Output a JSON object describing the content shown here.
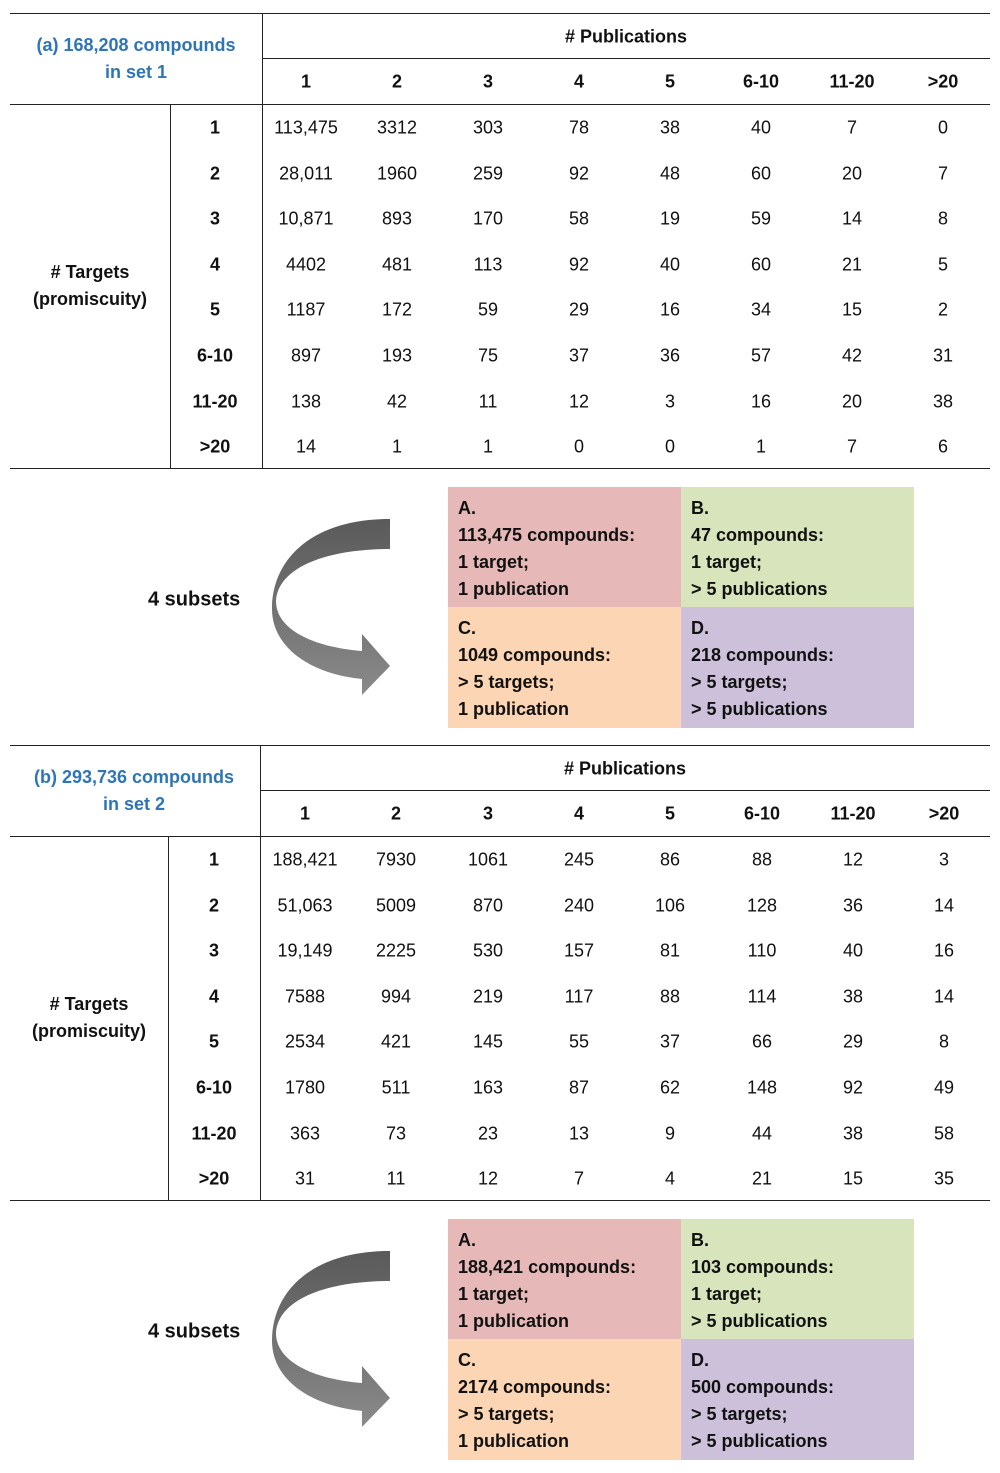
{
  "colors": {
    "title": "#2e75b6",
    "A": "#e6b9b8",
    "B": "#d7e4bc",
    "C": "#fcd5b4",
    "D": "#ccc0da"
  },
  "sections": [
    {
      "title_line1": "(a) 168,208 compounds",
      "title_line2": "in set 1",
      "pub_header": "# Publications",
      "targets_line1": "# Targets",
      "targets_line2": "(promiscuity)",
      "columns": [
        "1",
        "2",
        "3",
        "4",
        "5",
        "6-10",
        "11-20",
        ">20"
      ],
      "rows": [
        {
          "label": "1",
          "values": [
            "113,475",
            "3312",
            "303",
            "78",
            "38",
            "40",
            "7",
            "0"
          ]
        },
        {
          "label": "2",
          "values": [
            "28,011",
            "1960",
            "259",
            "92",
            "48",
            "60",
            "20",
            "7"
          ]
        },
        {
          "label": "3",
          "values": [
            "10,871",
            "893",
            "170",
            "58",
            "19",
            "59",
            "14",
            "8"
          ]
        },
        {
          "label": "4",
          "values": [
            "4402",
            "481",
            "113",
            "92",
            "40",
            "60",
            "21",
            "5"
          ]
        },
        {
          "label": "5",
          "values": [
            "1187",
            "172",
            "59",
            "29",
            "16",
            "34",
            "15",
            "2"
          ]
        },
        {
          "label": "6-10",
          "values": [
            "897",
            "193",
            "75",
            "37",
            "36",
            "57",
            "42",
            "31"
          ]
        },
        {
          "label": "11-20",
          "values": [
            "138",
            "42",
            "11",
            "12",
            "3",
            "16",
            "20",
            "38"
          ]
        },
        {
          "label": ">20",
          "values": [
            "14",
            "1",
            "1",
            "0",
            "0",
            "1",
            "7",
            "6"
          ]
        }
      ],
      "subsets_label": "4 subsets",
      "subsets": [
        {
          "key": "A",
          "lines": [
            "A.",
            "113,475 compounds:",
            "1 target;",
            "1 publication"
          ]
        },
        {
          "key": "B",
          "lines": [
            "B.",
            "47 compounds:",
            "1 target;",
            "> 5 publications"
          ]
        },
        {
          "key": "C",
          "lines": [
            "C.",
            "1049 compounds:",
            "> 5 targets;",
            "1 publication"
          ]
        },
        {
          "key": "D",
          "lines": [
            "D.",
            "218 compounds:",
            "> 5 targets;",
            "> 5 publications"
          ]
        }
      ]
    },
    {
      "title_line1": "(b) 293,736 compounds",
      "title_line2": "in set 2",
      "pub_header": "# Publications",
      "targets_line1": "# Targets",
      "targets_line2": "(promiscuity)",
      "columns": [
        "1",
        "2",
        "3",
        "4",
        "5",
        "6-10",
        "11-20",
        ">20"
      ],
      "rows": [
        {
          "label": "1",
          "values": [
            "188,421",
            "7930",
            "1061",
            "245",
            "86",
            "88",
            "12",
            "3"
          ]
        },
        {
          "label": "2",
          "values": [
            "51,063",
            "5009",
            "870",
            "240",
            "106",
            "128",
            "36",
            "14"
          ]
        },
        {
          "label": "3",
          "values": [
            "19,149",
            "2225",
            "530",
            "157",
            "81",
            "110",
            "40",
            "16"
          ]
        },
        {
          "label": "4",
          "values": [
            "7588",
            "994",
            "219",
            "117",
            "88",
            "114",
            "38",
            "14"
          ]
        },
        {
          "label": "5",
          "values": [
            "2534",
            "421",
            "145",
            "55",
            "37",
            "66",
            "29",
            "8"
          ]
        },
        {
          "label": "6-10",
          "values": [
            "1780",
            "511",
            "163",
            "87",
            "62",
            "148",
            "92",
            "49"
          ]
        },
        {
          "label": "11-20",
          "values": [
            "363",
            "73",
            "23",
            "13",
            "9",
            "44",
            "38",
            "58"
          ]
        },
        {
          "label": ">20",
          "values": [
            "31",
            "11",
            "12",
            "7",
            "4",
            "21",
            "15",
            "35"
          ]
        }
      ],
      "subsets_label": "4 subsets",
      "subsets": [
        {
          "key": "A",
          "lines": [
            "A.",
            "188,421 compounds:",
            "1 target;",
            "1 publication"
          ]
        },
        {
          "key": "B",
          "lines": [
            "B.",
            "103 compounds:",
            "1 target;",
            "> 5 publications"
          ]
        },
        {
          "key": "C",
          "lines": [
            "C.",
            "2174 compounds:",
            "> 5 targets;",
            "1 publication"
          ]
        },
        {
          "key": "D",
          "lines": [
            "D.",
            "500 compounds:",
            "> 5 targets;",
            "> 5 publications"
          ]
        }
      ]
    }
  ]
}
